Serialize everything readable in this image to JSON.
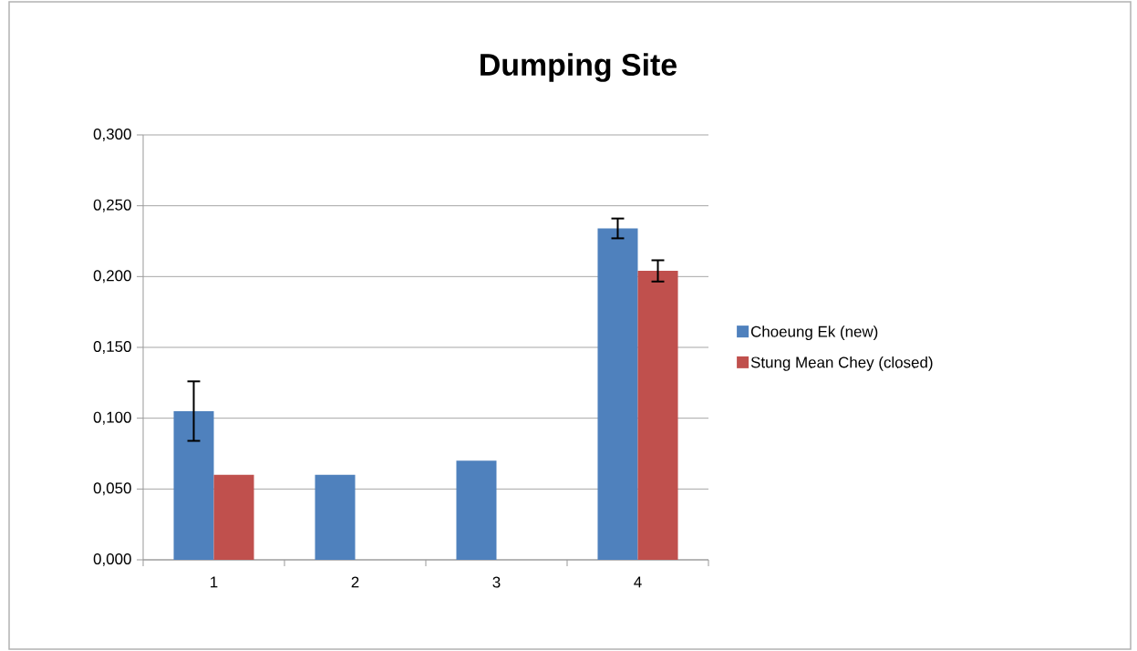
{
  "chart_data": {
    "type": "bar",
    "title": "Dumping Site",
    "categories": [
      "1",
      "2",
      "3",
      "4"
    ],
    "series": [
      {
        "name": "Choeung Ek (new)",
        "color": "#4f81bd",
        "values": [
          0.105,
          0.06,
          0.07,
          0.234
        ],
        "errors": [
          0.021,
          null,
          null,
          0.007
        ]
      },
      {
        "name": "Stung Mean Chey (closed)",
        "color": "#c0504d",
        "values": [
          0.06,
          null,
          null,
          0.204
        ],
        "errors": [
          null,
          null,
          null,
          0.0075
        ]
      }
    ],
    "ylim": [
      0,
      0.3
    ],
    "yticks": [
      {
        "value": 0,
        "label": "0,000"
      },
      {
        "value": 0.05,
        "label": "0,050"
      },
      {
        "value": 0.1,
        "label": "0,100"
      },
      {
        "value": 0.15,
        "label": "0,150"
      },
      {
        "value": 0.2,
        "label": "0,200"
      },
      {
        "value": 0.25,
        "label": "0,250"
      },
      {
        "value": 0.3,
        "label": "0,300"
      }
    ],
    "grid": "y",
    "legend": "right"
  }
}
